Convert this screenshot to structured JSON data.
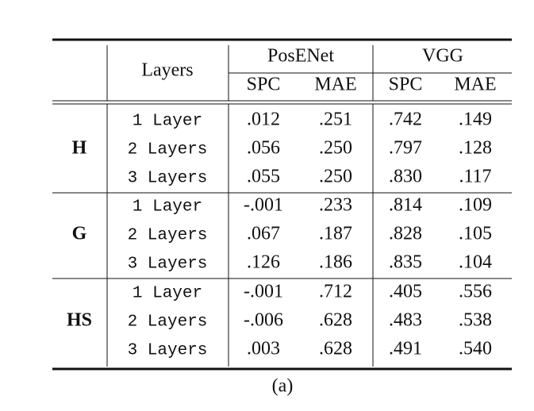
{
  "table": {
    "header": {
      "layers": "Layers",
      "models": [
        "PosENet",
        "VGG"
      ],
      "metrics": [
        "SPC",
        "MAE",
        "SPC",
        "MAE"
      ]
    },
    "groups": [
      {
        "label": "H",
        "rows": [
          {
            "layer": "1 Layer",
            "values": [
              ".012",
              ".251",
              ".742",
              ".149"
            ]
          },
          {
            "layer": "2 Layers",
            "values": [
              ".056",
              ".250",
              ".797",
              ".128"
            ]
          },
          {
            "layer": "3 Layers",
            "values": [
              ".055",
              ".250",
              ".830",
              ".117"
            ]
          }
        ]
      },
      {
        "label": "G",
        "rows": [
          {
            "layer": "1 Layer",
            "values": [
              "-.001",
              ".233",
              ".814",
              ".109"
            ]
          },
          {
            "layer": "2 Layers",
            "values": [
              ".067",
              ".187",
              ".828",
              ".105"
            ]
          },
          {
            "layer": "3 Layers",
            "values": [
              ".126",
              ".186",
              ".835",
              ".104"
            ]
          }
        ]
      },
      {
        "label": "HS",
        "rows": [
          {
            "layer": "1 Layer",
            "values": [
              "-.001",
              ".712",
              ".405",
              ".556"
            ]
          },
          {
            "layer": "2 Layers",
            "values": [
              "-.006",
              ".628",
              ".483",
              ".538"
            ]
          },
          {
            "layer": "3 Layers",
            "values": [
              ".003",
              ".628",
              ".491",
              ".540"
            ]
          }
        ]
      }
    ],
    "caption": "(a)"
  }
}
